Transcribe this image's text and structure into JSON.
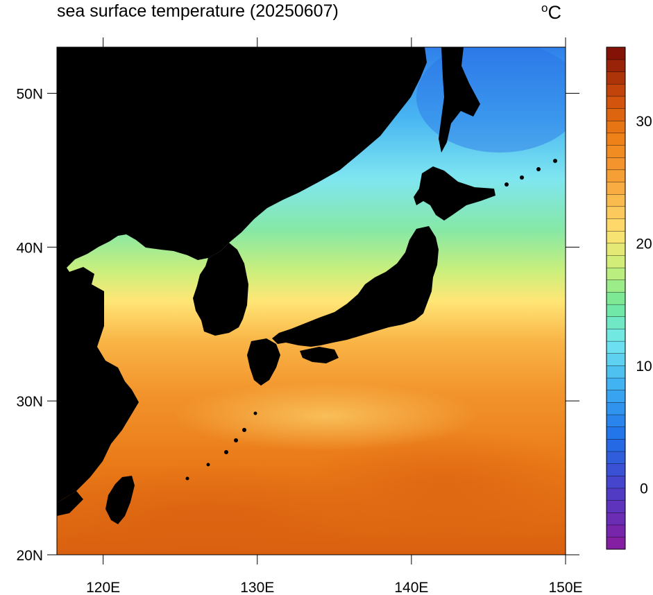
{
  "title": "sea surface temperature (20250607)",
  "units": {
    "degree_symbol": "o",
    "letter": "C"
  },
  "map": {
    "lon_range": [
      117,
      150
    ],
    "lat_range": [
      20,
      53
    ],
    "x_ticks": [
      {
        "value": 120,
        "label": "120E"
      },
      {
        "value": 130,
        "label": "130E"
      },
      {
        "value": 140,
        "label": "140E"
      },
      {
        "value": 150,
        "label": "150E"
      }
    ],
    "y_ticks": [
      {
        "value": 20,
        "label": "20N"
      },
      {
        "value": 30,
        "label": "30N"
      },
      {
        "value": 40,
        "label": "40N"
      },
      {
        "value": 50,
        "label": "50N"
      }
    ],
    "land_color": "#000000"
  },
  "colorbar": {
    "min": -5,
    "max": 36,
    "step": 1,
    "labels": [
      {
        "value": 0,
        "label": "0"
      },
      {
        "value": 10,
        "label": "10"
      },
      {
        "value": 20,
        "label": "20"
      },
      {
        "value": 30,
        "label": "30"
      }
    ],
    "palette_stops": [
      {
        "value": -5,
        "color": "#8a1a9e"
      },
      {
        "value": 0,
        "color": "#4b3fc9"
      },
      {
        "value": 4,
        "color": "#1f6fe8"
      },
      {
        "value": 8,
        "color": "#3aaaf2"
      },
      {
        "value": 12,
        "color": "#73e8f0"
      },
      {
        "value": 15,
        "color": "#6ee89a"
      },
      {
        "value": 18,
        "color": "#c9f07a"
      },
      {
        "value": 21,
        "color": "#ffe070"
      },
      {
        "value": 25,
        "color": "#f7a43a"
      },
      {
        "value": 29,
        "color": "#ed7d14"
      },
      {
        "value": 32,
        "color": "#cc4c0c"
      },
      {
        "value": 36,
        "color": "#7a0a05"
      }
    ]
  }
}
